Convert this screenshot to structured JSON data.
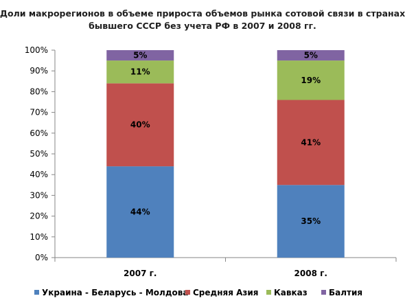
{
  "chart_data": {
    "type": "bar",
    "stacked": true,
    "title_line1": "Доли макрорегионов в объеме прироста объемов рынка сотовой связи в странах",
    "title_line2": "бывшего СССР без учета РФ в 2007 и 2008 гг.",
    "categories": [
      "2007 г.",
      "2008 г."
    ],
    "y_ticks": [
      "0%",
      "10%",
      "20%",
      "30%",
      "40%",
      "50%",
      "60%",
      "70%",
      "80%",
      "90%",
      "100%"
    ],
    "ylim": [
      0,
      100
    ],
    "grid": false,
    "legend_position": "bottom",
    "series": [
      {
        "name": "Украина - Беларусь - Молдова",
        "color": "#4f81bd",
        "values": [
          44,
          35
        ],
        "labels": [
          "44%",
          "35%"
        ]
      },
      {
        "name": "Средняя Азия",
        "color": "#c0504d",
        "values": [
          40,
          41
        ],
        "labels": [
          "40%",
          "41%"
        ]
      },
      {
        "name": "Кавказ",
        "color": "#9bbb59",
        "values": [
          11,
          19
        ],
        "labels": [
          "11%",
          "19%"
        ]
      },
      {
        "name": "Балтия",
        "color": "#8064a2",
        "values": [
          5,
          5
        ],
        "labels": [
          "5%",
          "5%"
        ]
      }
    ]
  }
}
